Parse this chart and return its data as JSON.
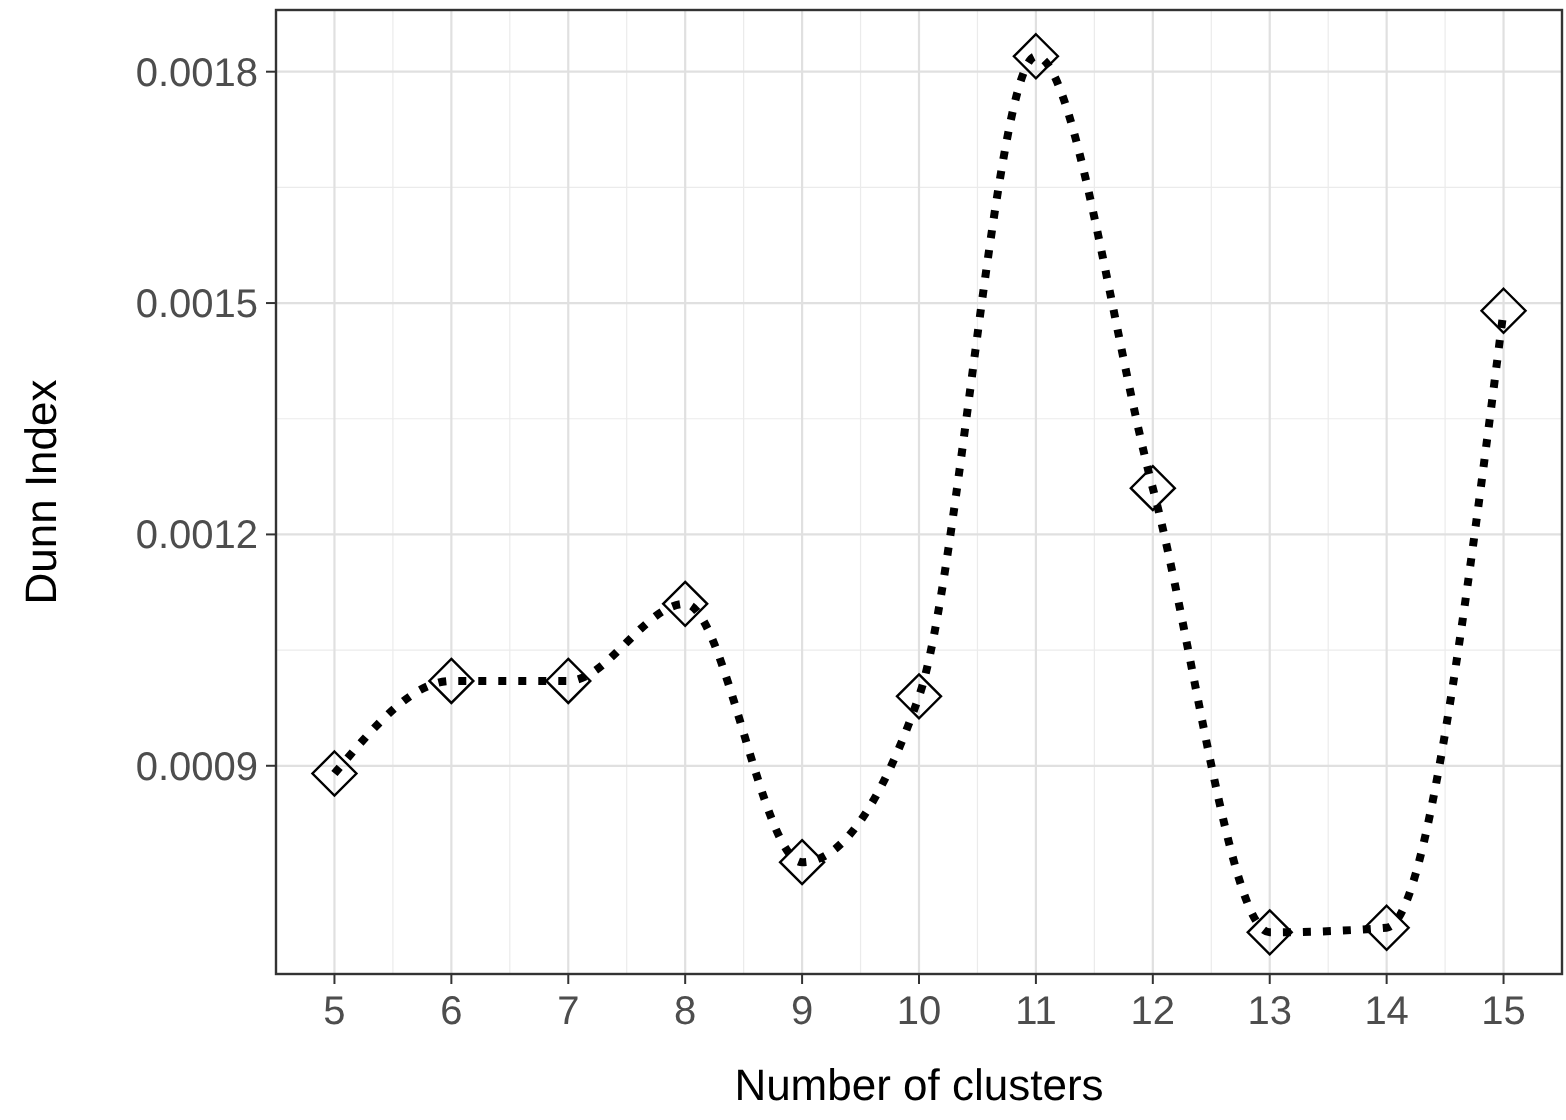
{
  "chart_data": {
    "type": "line",
    "xlabel": "Number of clusters",
    "ylabel": "Dunn Index",
    "x": [
      5,
      6,
      7,
      8,
      9,
      10,
      11,
      12,
      13,
      14,
      15
    ],
    "series": [
      {
        "color": "#000000",
        "values": [
          0.00089,
          0.00101,
          0.00101,
          0.00111,
          0.000775,
          0.00099,
          0.00182,
          0.00126,
          0.000684,
          0.00069,
          0.00149
        ]
      }
    ],
    "xlim": [
      4.5,
      15.5
    ],
    "xticks": [
      5,
      6,
      7,
      8,
      9,
      10,
      11,
      12,
      13,
      14,
      15
    ],
    "ylim": [
      0.00063,
      0.00188
    ],
    "yticks": [
      {
        "value": 0.0009,
        "label": "0.0009"
      },
      {
        "value": 0.0012,
        "label": "0.0012"
      },
      {
        "value": 0.0015,
        "label": "0.0015"
      },
      {
        "value": 0.0018,
        "label": "0.0018"
      }
    ],
    "grid": true,
    "marker": "diamond",
    "line_style": "dotted"
  }
}
